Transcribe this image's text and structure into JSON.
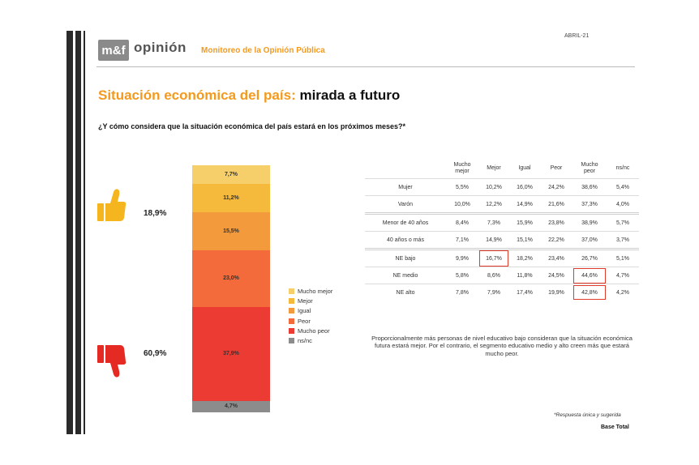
{
  "header": {
    "logo_text": "m&f",
    "brand": "opinión",
    "title": "Monitoreo de la Opinión Pública",
    "date": "ABRIL-21"
  },
  "title": {
    "part1": "Situación económica del país:",
    "part2": "mirada a futuro"
  },
  "question": "¿Y cómo considera que la situación económica del país estará en los próximos meses?*",
  "summary": {
    "positive_pct": "18,9%",
    "negative_pct": "60,9%"
  },
  "chart_data": {
    "type": "bar",
    "title": "",
    "categories": [
      "Base Total"
    ],
    "series": [
      {
        "name": "Mucho mejor",
        "values": [
          7.7
        ],
        "label": "7,7%",
        "color": "#f7cf6a"
      },
      {
        "name": "Mejor",
        "values": [
          11.2
        ],
        "label": "11,2%",
        "color": "#f5b93b"
      },
      {
        "name": "Igual",
        "values": [
          15.5
        ],
        "label": "15,5%",
        "color": "#f29a3c"
      },
      {
        "name": "Peor",
        "values": [
          23.0
        ],
        "label": "23,0%",
        "color": "#f36b3b"
      },
      {
        "name": "Mucho peor",
        "values": [
          37.9
        ],
        "label": "37,9%",
        "color": "#ec3b33"
      },
      {
        "name": "ns/nc",
        "values": [
          4.7
        ],
        "label": "4,7%",
        "color": "#8c8c8c"
      }
    ],
    "stacked": true,
    "legend_position": "right"
  },
  "legend": [
    {
      "label": "Mucho mejor",
      "color": "#f7cf6a"
    },
    {
      "label": "Mejor",
      "color": "#f5b93b"
    },
    {
      "label": "Igual",
      "color": "#f29a3c"
    },
    {
      "label": "Peor",
      "color": "#f36b3b"
    },
    {
      "label": "Mucho peor",
      "color": "#ec3b33"
    },
    {
      "label": "ns/nc",
      "color": "#8c8c8c"
    }
  ],
  "table": {
    "headers": [
      "",
      "Mucho\nmejor",
      "Mejor",
      "Igual",
      "Peor",
      "Mucho\npeor",
      "ns/nc"
    ],
    "rows": [
      {
        "label": "Mujer",
        "values": [
          "5,5%",
          "10,2%",
          "16,0%",
          "24,2%",
          "38,6%",
          "5,4%"
        ],
        "group_start": false
      },
      {
        "label": "Varón",
        "values": [
          "10,0%",
          "12,2%",
          "14,9%",
          "21,6%",
          "37,3%",
          "4,0%"
        ],
        "group_start": false
      },
      {
        "label": "Menor de 40 años",
        "values": [
          "8,4%",
          "7,3%",
          "15,9%",
          "23,8%",
          "38,9%",
          "5,7%"
        ],
        "group_start": true
      },
      {
        "label": "40 años o más",
        "values": [
          "7,1%",
          "14,9%",
          "15,1%",
          "22,2%",
          "37,0%",
          "3,7%"
        ],
        "group_start": false
      },
      {
        "label": "NE bajo",
        "values": [
          "9,9%",
          "16,7%",
          "18,2%",
          "23,4%",
          "26,7%",
          "5,1%"
        ],
        "group_start": true,
        "highlight_col": 1
      },
      {
        "label": "NE medio",
        "values": [
          "5,8%",
          "8,6%",
          "11,8%",
          "24,5%",
          "44,6%",
          "4,7%"
        ],
        "group_start": false,
        "highlight_col": 4
      },
      {
        "label": "NE alto",
        "values": [
          "7,8%",
          "7,9%",
          "17,4%",
          "19,9%",
          "42,8%",
          "4,2%"
        ],
        "group_start": false,
        "highlight_col": 4
      }
    ]
  },
  "note": "Proporcionalmente más personas de nivel educativo bajo consideran que la situación económica futura estará mejor. Por el contrario, el segmento educativo medio y alto creen más que estará mucho peor.",
  "footer": {
    "note": "*Respuesta única y sugerida",
    "base": "Base Total"
  },
  "icons": {
    "thumb_up": "thumbs-up-icon",
    "thumb_down": "thumbs-down-icon",
    "thumb_up_color": "#f5b51e",
    "thumb_down_color": "#e52a24"
  }
}
